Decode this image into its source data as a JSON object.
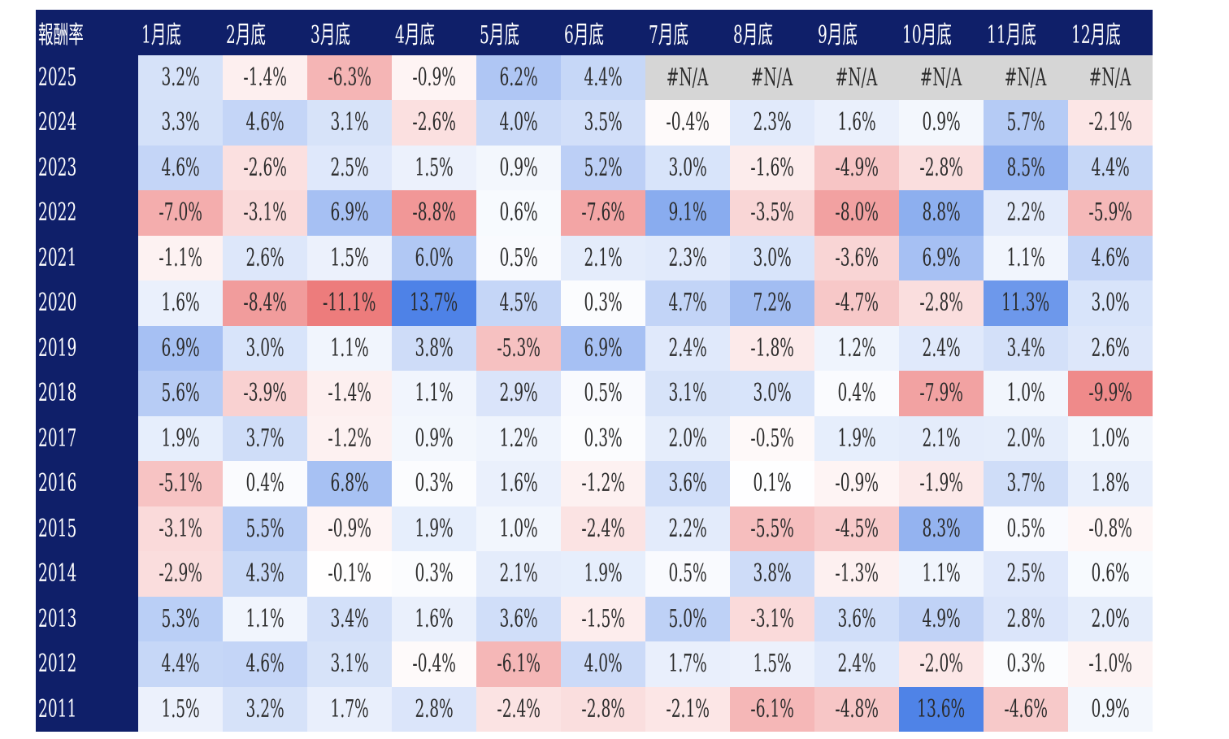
{
  "chart_data": {
    "type": "heatmap",
    "corner_label": "報酬率",
    "columns": [
      "1月底",
      "2月底",
      "3月底",
      "4月底",
      "5月底",
      "6月底",
      "7月底",
      "8月底",
      "9月底",
      "10月底",
      "11月底",
      "12月底"
    ],
    "rows": [
      "2025",
      "2024",
      "2023",
      "2022",
      "2021",
      "2020",
      "2019",
      "2018",
      "2017",
      "2016",
      "2015",
      "2014",
      "2013",
      "2012",
      "2011"
    ],
    "values": [
      [
        "3.2%",
        "-1.4%",
        "-6.3%",
        "-0.9%",
        "6.2%",
        "4.4%",
        "#N/A",
        "#N/A",
        "#N/A",
        "#N/A",
        "#N/A",
        "#N/A"
      ],
      [
        "3.3%",
        "4.6%",
        "3.1%",
        "-2.6%",
        "4.0%",
        "3.5%",
        "-0.4%",
        "2.3%",
        "1.6%",
        "0.9%",
        "5.7%",
        "-2.1%"
      ],
      [
        "4.6%",
        "-2.6%",
        "2.5%",
        "1.5%",
        "0.9%",
        "5.2%",
        "3.0%",
        "-1.6%",
        "-4.9%",
        "-2.8%",
        "8.5%",
        "4.4%"
      ],
      [
        "-7.0%",
        "-3.1%",
        "6.9%",
        "-8.8%",
        "0.6%",
        "-7.6%",
        "9.1%",
        "-3.5%",
        "-8.0%",
        "8.8%",
        "2.2%",
        "-5.9%"
      ],
      [
        "-1.1%",
        "2.6%",
        "1.5%",
        "6.0%",
        "0.5%",
        "2.1%",
        "2.3%",
        "3.0%",
        "-3.6%",
        "6.9%",
        "1.1%",
        "4.6%"
      ],
      [
        "1.6%",
        "-8.4%",
        "-11.1%",
        "13.7%",
        "4.5%",
        "0.3%",
        "4.7%",
        "7.2%",
        "-4.7%",
        "-2.8%",
        "11.3%",
        "3.0%"
      ],
      [
        "6.9%",
        "3.0%",
        "1.1%",
        "3.8%",
        "-5.3%",
        "6.9%",
        "2.4%",
        "-1.8%",
        "1.2%",
        "2.4%",
        "3.4%",
        "2.6%"
      ],
      [
        "5.6%",
        "-3.9%",
        "-1.4%",
        "1.1%",
        "2.9%",
        "0.5%",
        "3.1%",
        "3.0%",
        "0.4%",
        "-7.9%",
        "1.0%",
        "-9.9%"
      ],
      [
        "1.9%",
        "3.7%",
        "-1.2%",
        "0.9%",
        "1.2%",
        "0.3%",
        "2.0%",
        "-0.5%",
        "1.9%",
        "2.1%",
        "2.0%",
        "1.0%"
      ],
      [
        "-5.1%",
        "0.4%",
        "6.8%",
        "0.3%",
        "1.6%",
        "-1.2%",
        "3.6%",
        "0.1%",
        "-0.9%",
        "-1.9%",
        "3.7%",
        "1.8%"
      ],
      [
        "-3.1%",
        "5.5%",
        "-0.9%",
        "1.9%",
        "1.0%",
        "-2.4%",
        "2.2%",
        "-5.5%",
        "-4.5%",
        "8.3%",
        "0.5%",
        "-0.8%"
      ],
      [
        "-2.9%",
        "4.3%",
        "-0.1%",
        "0.3%",
        "2.1%",
        "1.9%",
        "0.5%",
        "3.8%",
        "-1.3%",
        "1.1%",
        "2.5%",
        "0.6%"
      ],
      [
        "5.3%",
        "1.1%",
        "3.4%",
        "1.6%",
        "3.6%",
        "-1.5%",
        "5.0%",
        "-3.1%",
        "3.6%",
        "4.9%",
        "2.8%",
        "2.0%"
      ],
      [
        "4.4%",
        "4.6%",
        "3.1%",
        "-0.4%",
        "-6.1%",
        "4.0%",
        "1.7%",
        "1.5%",
        "2.4%",
        "-2.0%",
        "0.3%",
        "-1.0%"
      ],
      [
        "1.5%",
        "3.2%",
        "1.7%",
        "2.8%",
        "-2.4%",
        "-2.8%",
        "-2.1%",
        "-6.1%",
        "-4.8%",
        "13.6%",
        "-4.6%",
        "0.9%"
      ]
    ],
    "colors": {
      "header_bg": "#0f1f69",
      "positive": "#4a7fe6",
      "negative": "#e85a5a",
      "na_bg": "#d6d6d6"
    }
  }
}
